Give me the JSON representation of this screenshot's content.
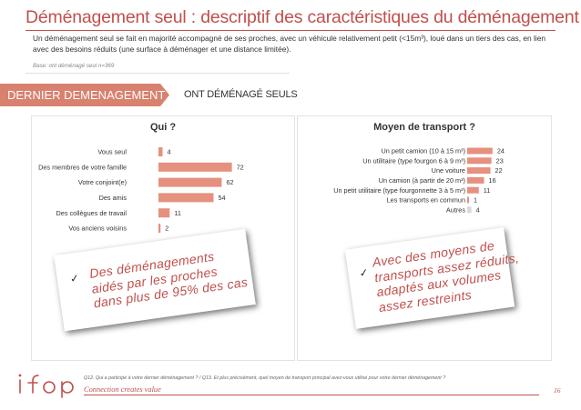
{
  "page": {
    "title": "Déménagement seul : descriptif des caractéristiques du déménagement",
    "subtitle": "Un déménagement seul se fait en majorité accompagné de ses proches, avec un véhicule relativement petit (<15m³), loué dans un tiers des cas, en lien avec des besoins réduits (une surface à déménager et une distance limitée).",
    "base": "Base: ont déménagé seul n=369",
    "ribbon_label": "DERNIER DEMENAGEMENT",
    "ribbon_side_label": "ONT DÉMÉNAGÉ SEULS",
    "note_left_check": "✓",
    "note_left_text": "Des déménagements\naidés par les proches\ndans plus de 95% des cas",
    "note_right_check": "✓",
    "note_right_text": "Avec des moyens de\ntransports assez réduits,\nadaptés aux volumes\nassez restreints",
    "footnote": "Q12. Qui a participé à votre dernier déménagement ? / Q13. Et plus précisément, quel moyen de transport principal avez-vous utilisé pour votre dernier déménagement ?",
    "tagline": "Connection creates value",
    "page_number": "16",
    "logo_text": "ifop"
  },
  "colors": {
    "accent": "#c0504d",
    "bar": "#e6907f",
    "bar_muted": "#d9d9d9",
    "ribbon": "#d9816f"
  },
  "chart_data": [
    {
      "type": "bar",
      "orientation": "horizontal",
      "title": "Qui ?",
      "categories": [
        "Vous seul",
        "Des membres de votre famille",
        "Votre conjoint(e)",
        "Des amis",
        "Des collègues de travail",
        "Vos anciens voisins"
      ],
      "values": [
        4,
        72,
        62,
        54,
        11,
        2
      ],
      "unit": "%",
      "xlim": [
        0,
        100
      ]
    },
    {
      "type": "bar",
      "orientation": "horizontal",
      "title": "Moyen de transport ?",
      "categories": [
        "Un petit camion (10 à 15 m³)",
        "Un utilitaire (type fourgon 6 à 9 m³)",
        "Une voiture",
        "Un camion (à partir de 20 m³)",
        "Un petit utilitaire (type fourgonnette 3 à 5 m³)",
        "Les transports en commun",
        "Autres"
      ],
      "values": [
        24,
        23,
        22,
        16,
        11,
        1,
        4
      ],
      "muted": [
        false,
        false,
        false,
        false,
        false,
        false,
        true
      ],
      "unit": "%",
      "xlim": [
        0,
        100
      ]
    }
  ]
}
